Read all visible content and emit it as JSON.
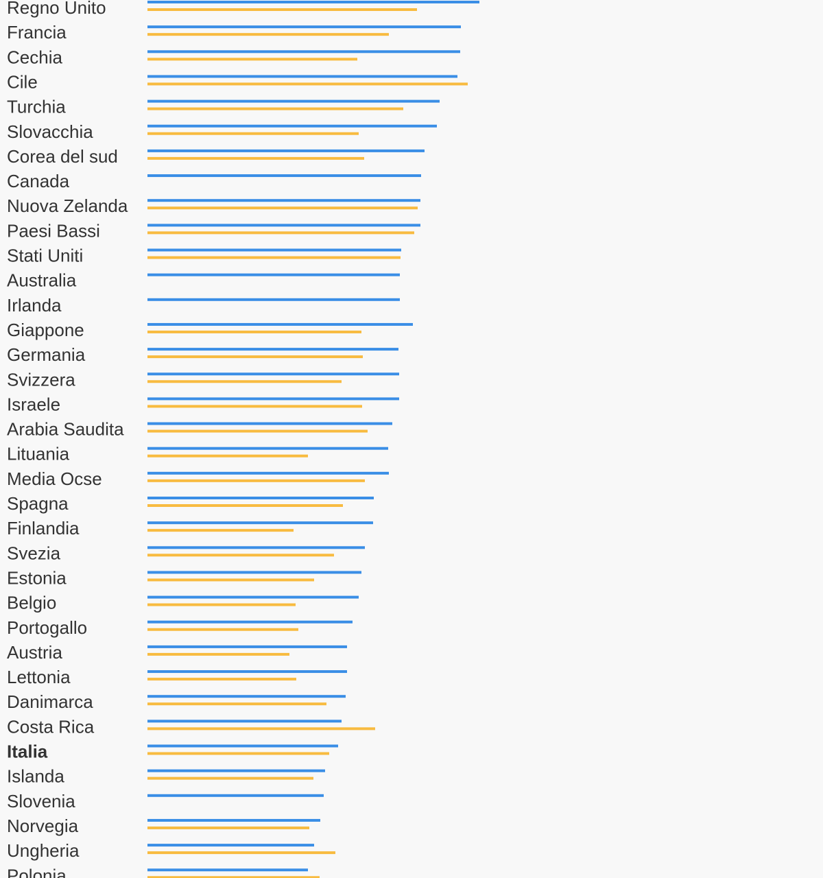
{
  "chart_data": {
    "type": "bar",
    "orientation": "horizontal",
    "colors": {
      "series_a": "#3a8ee6",
      "series_b": "#f8bb40"
    },
    "highlight": "Italia",
    "categories": [
      "Regno Unito",
      "Francia",
      "Cechia",
      "Cile",
      "Turchia",
      "Slovacchia",
      "Corea del sud",
      "Canada",
      "Nuova Zelanda",
      "Paesi Bassi",
      "Stati Uniti",
      "Australia",
      "Irlanda",
      "Giappone",
      "Germania",
      "Svizzera",
      "Israele",
      "Arabia Saudita",
      "Lituania",
      "Media Ocse",
      "Spagna",
      "Finlandia",
      "Svezia",
      "Estonia",
      "Belgio",
      "Portogallo",
      "Austria",
      "Lettonia",
      "Danimarca",
      "Costa Rica",
      "Italia",
      "Islanda",
      "Slovenia",
      "Norvegia",
      "Ungheria",
      "Polonia"
    ],
    "series": [
      {
        "values": [
          484,
          457,
          456,
          452,
          426,
          422,
          404,
          399,
          398,
          398,
          370,
          368,
          368,
          387,
          366,
          367,
          367,
          357,
          351,
          352,
          330,
          329,
          317,
          312,
          308,
          299,
          291,
          291,
          289,
          283,
          278,
          259,
          257,
          252,
          243,
          234
        ]
      },
      {
        "values": [
          393,
          352,
          306,
          467,
          373,
          308,
          316,
          null,
          394,
          389,
          369,
          null,
          null,
          312,
          314,
          283,
          313,
          321,
          234,
          317,
          285,
          213,
          272,
          243,
          216,
          220,
          207,
          217,
          261,
          332,
          265,
          242,
          null,
          236,
          274,
          251
        ]
      }
    ]
  }
}
